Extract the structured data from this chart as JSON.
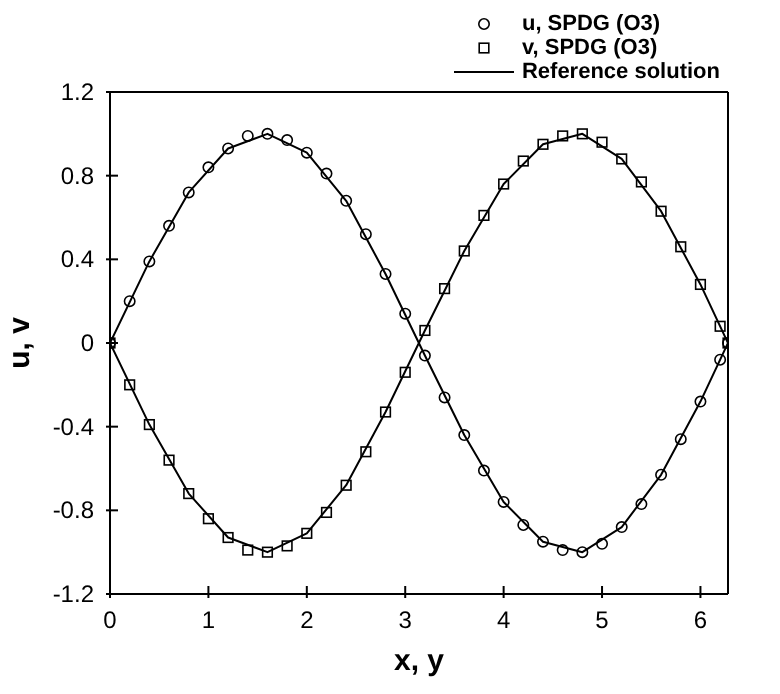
{
  "chart_data": {
    "type": "scatter",
    "xlabel": "x, y",
    "ylabel": "u, v",
    "xlim": [
      0,
      6.28
    ],
    "xticks": [
      0,
      1,
      2,
      3,
      4,
      5,
      6
    ],
    "ylim": [
      -1.2,
      1.2
    ],
    "yticks": [
      -1.2,
      -0.8,
      -0.4,
      0,
      0.4,
      0.8,
      1.2
    ],
    "grid": false,
    "legend": "top right",
    "series": [
      {
        "name": "u, SPDG (O3)",
        "type": "scatter",
        "marker": "circle",
        "color": "#000000",
        "x": [
          0,
          0.2,
          0.4,
          0.6,
          0.8,
          1,
          1.2,
          1.4,
          1.6,
          1.8,
          2,
          2.2,
          2.4,
          2.6,
          2.8,
          3,
          3.2,
          3.4,
          3.6,
          3.8,
          4,
          4.2,
          4.4,
          4.6,
          4.8,
          5,
          5.2,
          5.4,
          5.6,
          5.8,
          6,
          6.2,
          6.28
        ],
        "values": [
          0,
          0.2,
          0.39,
          0.56,
          0.72,
          0.84,
          0.93,
          0.99,
          1,
          0.97,
          0.91,
          0.81,
          0.68,
          0.52,
          0.33,
          0.14,
          -0.06,
          -0.26,
          -0.44,
          -0.61,
          -0.76,
          -0.87,
          -0.95,
          -0.99,
          -1,
          -0.96,
          -0.88,
          -0.77,
          -0.63,
          -0.46,
          -0.28,
          -0.08,
          0
        ]
      },
      {
        "name": "v, SPDG (O3)",
        "type": "scatter",
        "marker": "square",
        "color": "#000000",
        "x": [
          0,
          0.2,
          0.4,
          0.6,
          0.8,
          1,
          1.2,
          1.4,
          1.6,
          1.8,
          2,
          2.2,
          2.4,
          2.6,
          2.8,
          3,
          3.2,
          3.4,
          3.6,
          3.8,
          4,
          4.2,
          4.4,
          4.6,
          4.8,
          5,
          5.2,
          5.4,
          5.6,
          5.8,
          6,
          6.2,
          6.28
        ],
        "values": [
          0,
          -0.2,
          -0.39,
          -0.56,
          -0.72,
          -0.84,
          -0.93,
          -0.99,
          -1,
          -0.97,
          -0.91,
          -0.81,
          -0.68,
          -0.52,
          -0.33,
          -0.14,
          0.06,
          0.26,
          0.44,
          0.61,
          0.76,
          0.87,
          0.95,
          0.99,
          1,
          0.96,
          0.88,
          0.77,
          0.63,
          0.46,
          0.28,
          0.08,
          0
        ]
      },
      {
        "name": "Reference solution",
        "type": "line",
        "marker": "none",
        "line_style": "solid",
        "color": "#000000",
        "x": [
          0,
          0.4,
          0.8,
          1.2,
          1.6,
          2,
          2.4,
          2.8,
          3.2,
          3.6,
          4,
          4.4,
          4.8,
          5.2,
          5.6,
          6,
          6.28,
          null,
          0,
          0.4,
          0.8,
          1.2,
          1.6,
          2,
          2.4,
          2.8,
          3.2,
          3.6,
          4,
          4.4,
          4.8,
          5.2,
          5.6,
          6,
          6.28
        ],
        "values": [
          0,
          0.39,
          0.72,
          0.93,
          1,
          0.91,
          0.68,
          0.33,
          -0.06,
          -0.44,
          -0.76,
          -0.95,
          -1,
          -0.88,
          -0.63,
          -0.28,
          0,
          null,
          0,
          -0.39,
          -0.72,
          -0.93,
          -1,
          -0.91,
          -0.68,
          -0.33,
          0.06,
          0.44,
          0.76,
          0.95,
          1,
          0.88,
          0.63,
          0.28,
          0
        ]
      }
    ]
  }
}
